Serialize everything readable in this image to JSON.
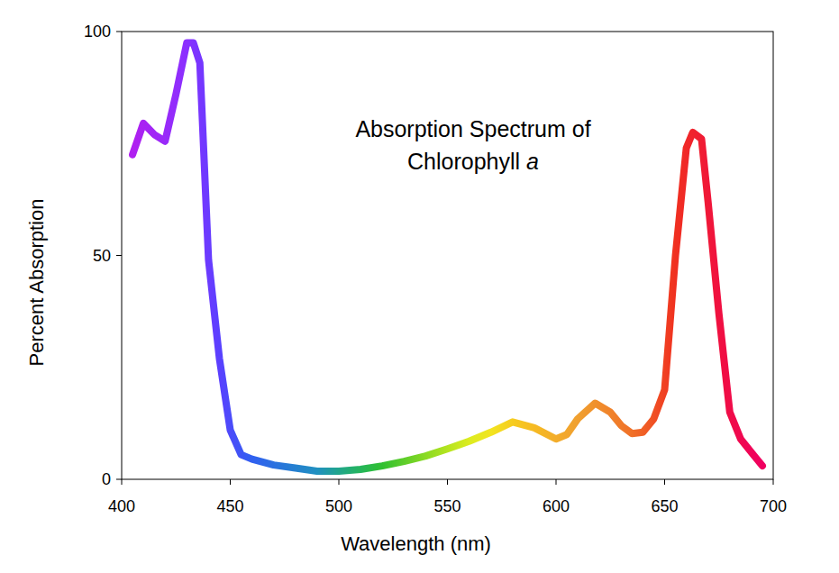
{
  "chart_data": {
    "type": "line",
    "title": [
      "Absorption Spectrum of",
      "Chlorophyll a"
    ],
    "x_label": "Wavelength (nm)",
    "y_label": "Percent Absorption",
    "x": [
      405,
      410,
      415,
      420,
      425,
      430,
      433,
      436,
      440,
      445,
      450,
      455,
      460,
      470,
      480,
      490,
      500,
      510,
      520,
      530,
      540,
      550,
      560,
      570,
      580,
      590,
      600,
      605,
      610,
      618,
      625,
      630,
      635,
      640,
      645,
      650,
      655,
      660,
      663,
      667,
      670,
      675,
      680,
      685,
      690,
      695
    ],
    "values": [
      72.5,
      79.5,
      77,
      75.5,
      86,
      97.5,
      97.5,
      93,
      49,
      27,
      11,
      5.5,
      4.5,
      3.2,
      2.5,
      1.8,
      1.8,
      2.2,
      3,
      4,
      5.2,
      6.8,
      8.5,
      10.5,
      12.8,
      11.5,
      9,
      10,
      13.5,
      17,
      15,
      12,
      10.2,
      10.5,
      13.5,
      20,
      50,
      74,
      77.5,
      76,
      62,
      37,
      15,
      9,
      6,
      3
    ],
    "xlim": [
      400,
      700
    ],
    "ylim": [
      0,
      100
    ],
    "xticks": [
      400,
      450,
      500,
      550,
      600,
      650,
      700
    ],
    "yticks": [
      0,
      50,
      100
    ],
    "grid": false
  }
}
